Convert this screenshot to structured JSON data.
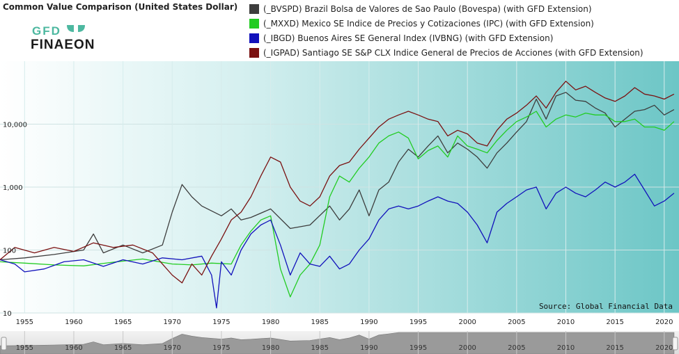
{
  "header": {
    "title": "Common Value Comparison (United States Dollar)"
  },
  "logo": {
    "top_text": "GFD",
    "bottom_text": "FINAEON"
  },
  "source": "Source: Global Financial Data",
  "colors": {
    "bovespa": "#3d3d3d",
    "ipc": "#22cc22",
    "ivbng": "#1111bb",
    "igpad": "#7a1111",
    "plot_bg_left": "#ffffff",
    "plot_bg_right": "#6cc6c6"
  },
  "chart_data": {
    "type": "line",
    "title": "Common Value Comparison (United States Dollar)",
    "y_scale": "log",
    "ylim": [
      10,
      100000
    ],
    "xlim": [
      1952.5,
      2021.5
    ],
    "y_ticks": [
      {
        "value": 10,
        "label": "10"
      },
      {
        "value": 100,
        "label": "100"
      },
      {
        "value": 1000,
        "label": "1,000"
      },
      {
        "value": 10000,
        "label": "10,000"
      }
    ],
    "x_ticks": [
      "1955",
      "1960",
      "1965",
      "1970",
      "1975",
      "1980",
      "1985",
      "1990",
      "1995",
      "2000",
      "2005",
      "2010",
      "2015",
      "2020"
    ],
    "grid": true,
    "legend_position": "top",
    "series": [
      {
        "name": "(_BVSPD) Brazil Bolsa de Valores de Sao Paulo (Bovespa) (with GFD Extension)",
        "color_key": "bovespa",
        "points": [
          [
            1952.5,
            70
          ],
          [
            1955,
            75
          ],
          [
            1958,
            85
          ],
          [
            1961,
            100
          ],
          [
            1962,
            180
          ],
          [
            1963,
            90
          ],
          [
            1965,
            120
          ],
          [
            1967,
            90
          ],
          [
            1969,
            120
          ],
          [
            1970,
            400
          ],
          [
            1971,
            1100
          ],
          [
            1972,
            700
          ],
          [
            1973,
            500
          ],
          [
            1975,
            350
          ],
          [
            1976,
            450
          ],
          [
            1977,
            300
          ],
          [
            1978,
            330
          ],
          [
            1980,
            450
          ],
          [
            1982,
            220
          ],
          [
            1984,
            250
          ],
          [
            1986,
            500
          ],
          [
            1987,
            300
          ],
          [
            1988,
            450
          ],
          [
            1989,
            900
          ],
          [
            1990,
            350
          ],
          [
            1991,
            900
          ],
          [
            1992,
            1200
          ],
          [
            1993,
            2500
          ],
          [
            1994,
            4000
          ],
          [
            1995,
            3000
          ],
          [
            1996,
            4500
          ],
          [
            1997,
            6500
          ],
          [
            1998,
            3500
          ],
          [
            1999,
            5000
          ],
          [
            2000,
            4000
          ],
          [
            2001,
            3000
          ],
          [
            2002,
            2000
          ],
          [
            2003,
            3500
          ],
          [
            2004,
            5000
          ],
          [
            2005,
            7500
          ],
          [
            2006,
            11000
          ],
          [
            2007,
            25000
          ],
          [
            2008,
            12000
          ],
          [
            2009,
            28000
          ],
          [
            2010,
            32000
          ],
          [
            2011,
            24000
          ],
          [
            2012,
            23000
          ],
          [
            2013,
            18000
          ],
          [
            2014,
            15000
          ],
          [
            2015,
            9000
          ],
          [
            2016,
            12000
          ],
          [
            2017,
            16000
          ],
          [
            2018,
            17000
          ],
          [
            2019,
            20000
          ],
          [
            2020,
            14000
          ],
          [
            2021,
            17000
          ]
        ]
      },
      {
        "name": "(_MXXD) Mexico SE Indice de Precios y Cotizaciones (IPC) (with GFD Extension)",
        "color_key": "ipc",
        "points": [
          [
            1952.5,
            65
          ],
          [
            1955,
            62
          ],
          [
            1958,
            58
          ],
          [
            1961,
            56
          ],
          [
            1964,
            64
          ],
          [
            1967,
            72
          ],
          [
            1970,
            60
          ],
          [
            1972,
            58
          ],
          [
            1974,
            62
          ],
          [
            1976,
            60
          ],
          [
            1977,
            120
          ],
          [
            1978,
            200
          ],
          [
            1979,
            300
          ],
          [
            1980,
            350
          ],
          [
            1981,
            50
          ],
          [
            1982,
            18
          ],
          [
            1983,
            40
          ],
          [
            1984,
            60
          ],
          [
            1985,
            120
          ],
          [
            1986,
            700
          ],
          [
            1987,
            1500
          ],
          [
            1988,
            1200
          ],
          [
            1989,
            2000
          ],
          [
            1990,
            3000
          ],
          [
            1991,
            5000
          ],
          [
            1992,
            6500
          ],
          [
            1993,
            7500
          ],
          [
            1994,
            6000
          ],
          [
            1995,
            2800
          ],
          [
            1996,
            3800
          ],
          [
            1997,
            4500
          ],
          [
            1998,
            3000
          ],
          [
            1999,
            6500
          ],
          [
            2000,
            4500
          ],
          [
            2001,
            4000
          ],
          [
            2002,
            3500
          ],
          [
            2003,
            5500
          ],
          [
            2004,
            8000
          ],
          [
            2005,
            11000
          ],
          [
            2006,
            13000
          ],
          [
            2007,
            16000
          ],
          [
            2008,
            9000
          ],
          [
            2009,
            12000
          ],
          [
            2010,
            14000
          ],
          [
            2011,
            13000
          ],
          [
            2012,
            15000
          ],
          [
            2013,
            14000
          ],
          [
            2014,
            14000
          ],
          [
            2015,
            11000
          ],
          [
            2016,
            11000
          ],
          [
            2017,
            12000
          ],
          [
            2018,
            9000
          ],
          [
            2019,
            9000
          ],
          [
            2020,
            8000
          ],
          [
            2021,
            11000
          ]
        ]
      },
      {
        "name": "(_IBGD) Buenos Aires SE General Index (IVBNG) (with GFD Extension)",
        "color_key": "ivbng",
        "points": [
          [
            1952.5,
            70
          ],
          [
            1954,
            60
          ],
          [
            1955,
            45
          ],
          [
            1957,
            50
          ],
          [
            1959,
            65
          ],
          [
            1961,
            70
          ],
          [
            1963,
            55
          ],
          [
            1965,
            70
          ],
          [
            1967,
            60
          ],
          [
            1969,
            75
          ],
          [
            1971,
            70
          ],
          [
            1973,
            80
          ],
          [
            1974,
            40
          ],
          [
            1974.5,
            12
          ],
          [
            1975,
            65
          ],
          [
            1976,
            40
          ],
          [
            1977,
            100
          ],
          [
            1978,
            180
          ],
          [
            1979,
            250
          ],
          [
            1980,
            300
          ],
          [
            1981,
            120
          ],
          [
            1982,
            40
          ],
          [
            1983,
            90
          ],
          [
            1984,
            60
          ],
          [
            1985,
            55
          ],
          [
            1986,
            80
          ],
          [
            1987,
            50
          ],
          [
            1988,
            60
          ],
          [
            1989,
            100
          ],
          [
            1990,
            150
          ],
          [
            1991,
            300
          ],
          [
            1992,
            450
          ],
          [
            1993,
            500
          ],
          [
            1994,
            450
          ],
          [
            1995,
            500
          ],
          [
            1996,
            600
          ],
          [
            1997,
            700
          ],
          [
            1998,
            600
          ],
          [
            1999,
            550
          ],
          [
            2000,
            400
          ],
          [
            2001,
            250
          ],
          [
            2002,
            130
          ],
          [
            2003,
            400
          ],
          [
            2004,
            550
          ],
          [
            2005,
            700
          ],
          [
            2006,
            900
          ],
          [
            2007,
            1000
          ],
          [
            2008,
            450
          ],
          [
            2009,
            800
          ],
          [
            2010,
            1000
          ],
          [
            2011,
            800
          ],
          [
            2012,
            700
          ],
          [
            2013,
            900
          ],
          [
            2014,
            1200
          ],
          [
            2015,
            1000
          ],
          [
            2016,
            1200
          ],
          [
            2017,
            1600
          ],
          [
            2018,
            900
          ],
          [
            2019,
            500
          ],
          [
            2020,
            600
          ],
          [
            2021,
            800
          ]
        ]
      },
      {
        "name": "(_IGPAD) Santiago SE S&P CLX Indice General de Precios de Acciones (with GFD Extension)",
        "color_key": "igpad",
        "points": [
          [
            1952.5,
            70
          ],
          [
            1954,
            110
          ],
          [
            1956,
            90
          ],
          [
            1958,
            110
          ],
          [
            1960,
            95
          ],
          [
            1962,
            130
          ],
          [
            1964,
            110
          ],
          [
            1966,
            120
          ],
          [
            1968,
            90
          ],
          [
            1969,
            60
          ],
          [
            1970,
            40
          ],
          [
            1971,
            30
          ],
          [
            1972,
            60
          ],
          [
            1973,
            40
          ],
          [
            1974,
            80
          ],
          [
            1975,
            150
          ],
          [
            1976,
            300
          ],
          [
            1977,
            400
          ],
          [
            1978,
            700
          ],
          [
            1979,
            1500
          ],
          [
            1980,
            3000
          ],
          [
            1981,
            2500
          ],
          [
            1982,
            1000
          ],
          [
            1983,
            600
          ],
          [
            1984,
            500
          ],
          [
            1985,
            700
          ],
          [
            1986,
            1500
          ],
          [
            1987,
            2200
          ],
          [
            1988,
            2500
          ],
          [
            1989,
            4000
          ],
          [
            1990,
            6000
          ],
          [
            1991,
            9000
          ],
          [
            1992,
            12000
          ],
          [
            1993,
            14000
          ],
          [
            1994,
            16000
          ],
          [
            1995,
            14000
          ],
          [
            1996,
            12000
          ],
          [
            1997,
            11000
          ],
          [
            1998,
            6500
          ],
          [
            1999,
            8000
          ],
          [
            2000,
            7000
          ],
          [
            2001,
            5000
          ],
          [
            2002,
            4500
          ],
          [
            2003,
            8000
          ],
          [
            2004,
            12000
          ],
          [
            2005,
            15000
          ],
          [
            2006,
            20000
          ],
          [
            2007,
            28000
          ],
          [
            2008,
            18000
          ],
          [
            2009,
            32000
          ],
          [
            2010,
            48000
          ],
          [
            2011,
            35000
          ],
          [
            2012,
            40000
          ],
          [
            2013,
            32000
          ],
          [
            2014,
            26000
          ],
          [
            2015,
            23000
          ],
          [
            2016,
            28000
          ],
          [
            2017,
            38000
          ],
          [
            2018,
            30000
          ],
          [
            2019,
            28000
          ],
          [
            2020,
            25000
          ],
          [
            2021,
            30000
          ]
        ]
      }
    ]
  },
  "navigator": {
    "x_ticks": [
      "1955",
      "1960",
      "1965",
      "1970",
      "1975",
      "1980",
      "1985",
      "1990",
      "1995",
      "2000",
      "2005",
      "2010",
      "2015",
      "2020"
    ]
  }
}
